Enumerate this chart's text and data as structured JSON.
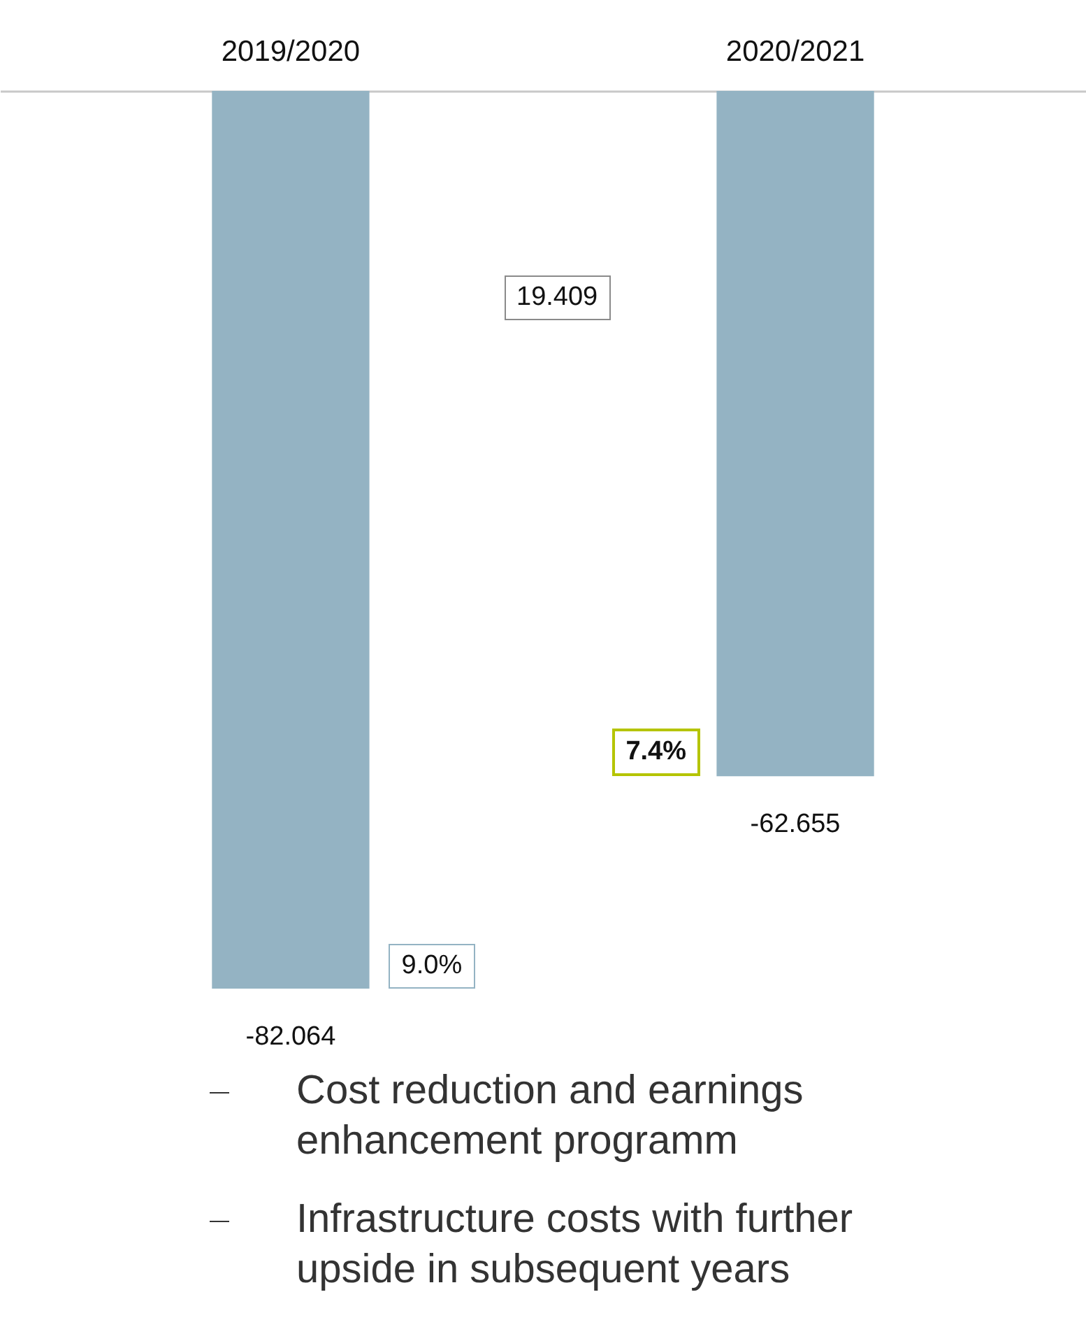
{
  "chart_data": {
    "type": "bar",
    "categories": [
      "2019/2020",
      "2020/2021"
    ],
    "values": [
      -82.064,
      -62.655
    ],
    "color": "#94b3c3",
    "data_labels": true,
    "annotations": [
      "19.409",
      "9.0%",
      "7.4%",
      "Cost reduction and earnings enhancement programm",
      "Infrastructure costs with further upside in subsequent years"
    ]
  }
}
